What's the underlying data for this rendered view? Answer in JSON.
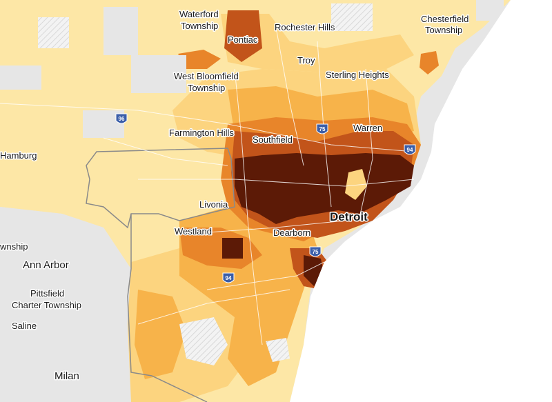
{
  "colors": {
    "water": "#ffffff",
    "land_outside": "#e6e6e6",
    "shade_1": "#fde7a6",
    "shade_2": "#fcd47f",
    "shade_3": "#f7b34a",
    "shade_4": "#e8852a",
    "shade_5": "#c2541a",
    "shade_6": "#9a3210",
    "shade_7": "#5c1a06",
    "county_border": "#8a8a8a",
    "road": "#ffffff",
    "hatch": "#d8d8d8"
  },
  "labels": {
    "waterford": "Waterford",
    "waterford_township": "Township",
    "pontiac": "Pontiac",
    "rochester_hills": "Rochester Hills",
    "chesterfield": "Chesterfield",
    "chesterfield_township": "Township",
    "troy": "Troy",
    "sterling_heights": "Sterling Heights",
    "west_bloomfield": "West Bloomfield",
    "west_bloomfield_township": "Township",
    "farmington_hills": "Farmington Hills",
    "southfield": "Southfield",
    "warren": "Warren",
    "hamburg": "Hamburg",
    "livonia": "Livonia",
    "detroit": "Detroit",
    "westland": "Westland",
    "dearborn": "Dearborn",
    "township_left": "wnship",
    "ann_arbor": "Ann Arbor",
    "pittsfield": "Pittsfield",
    "pittsfield_township": "Charter Township",
    "saline": "Saline",
    "milan": "Milan"
  },
  "highways": [
    {
      "id": "i96",
      "number": "96"
    },
    {
      "id": "i75-north",
      "number": "75"
    },
    {
      "id": "i94-east",
      "number": "94"
    },
    {
      "id": "i75-south",
      "number": "75"
    },
    {
      "id": "i94-west",
      "number": "94"
    }
  ]
}
